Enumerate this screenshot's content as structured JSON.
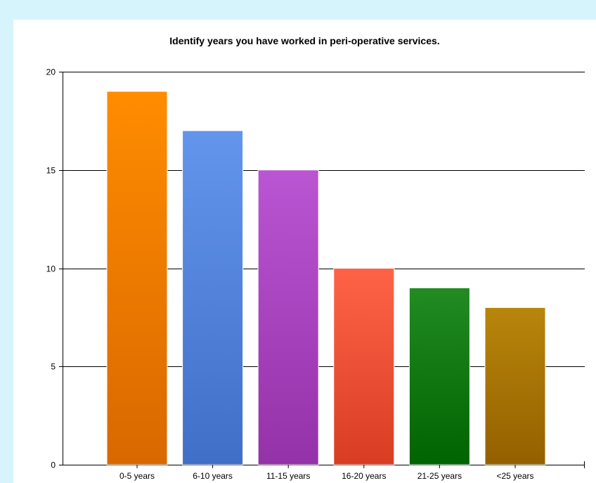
{
  "chart_data": {
    "type": "bar",
    "title": "Identify years you have worked in peri-operative services.",
    "xlabel": "",
    "ylabel": "",
    "categories": [
      "0-5 years",
      "6-10 years",
      "11-15 years",
      "16-20 years",
      "21-25 years",
      "<25 years"
    ],
    "values": [
      19,
      17,
      15,
      10,
      9,
      8
    ],
    "ylim": [
      0,
      20
    ],
    "yticks": [
      "0",
      "5",
      "10",
      "15",
      "20"
    ],
    "grid": true,
    "legend": "none",
    "bar_colors": [
      [
        "#ff8c00",
        "#d96800"
      ],
      [
        "#6495ed",
        "#3f6fc6"
      ],
      [
        "#ba55d3",
        "#9432a8"
      ],
      [
        "#ff6347",
        "#d83d24"
      ],
      [
        "#228b22",
        "#006400"
      ],
      [
        "#b8860b",
        "#946000"
      ]
    ]
  },
  "colors": {
    "page_background": "#d6f4fc",
    "panel_background": "#ffffff",
    "gridline": "#000000"
  }
}
